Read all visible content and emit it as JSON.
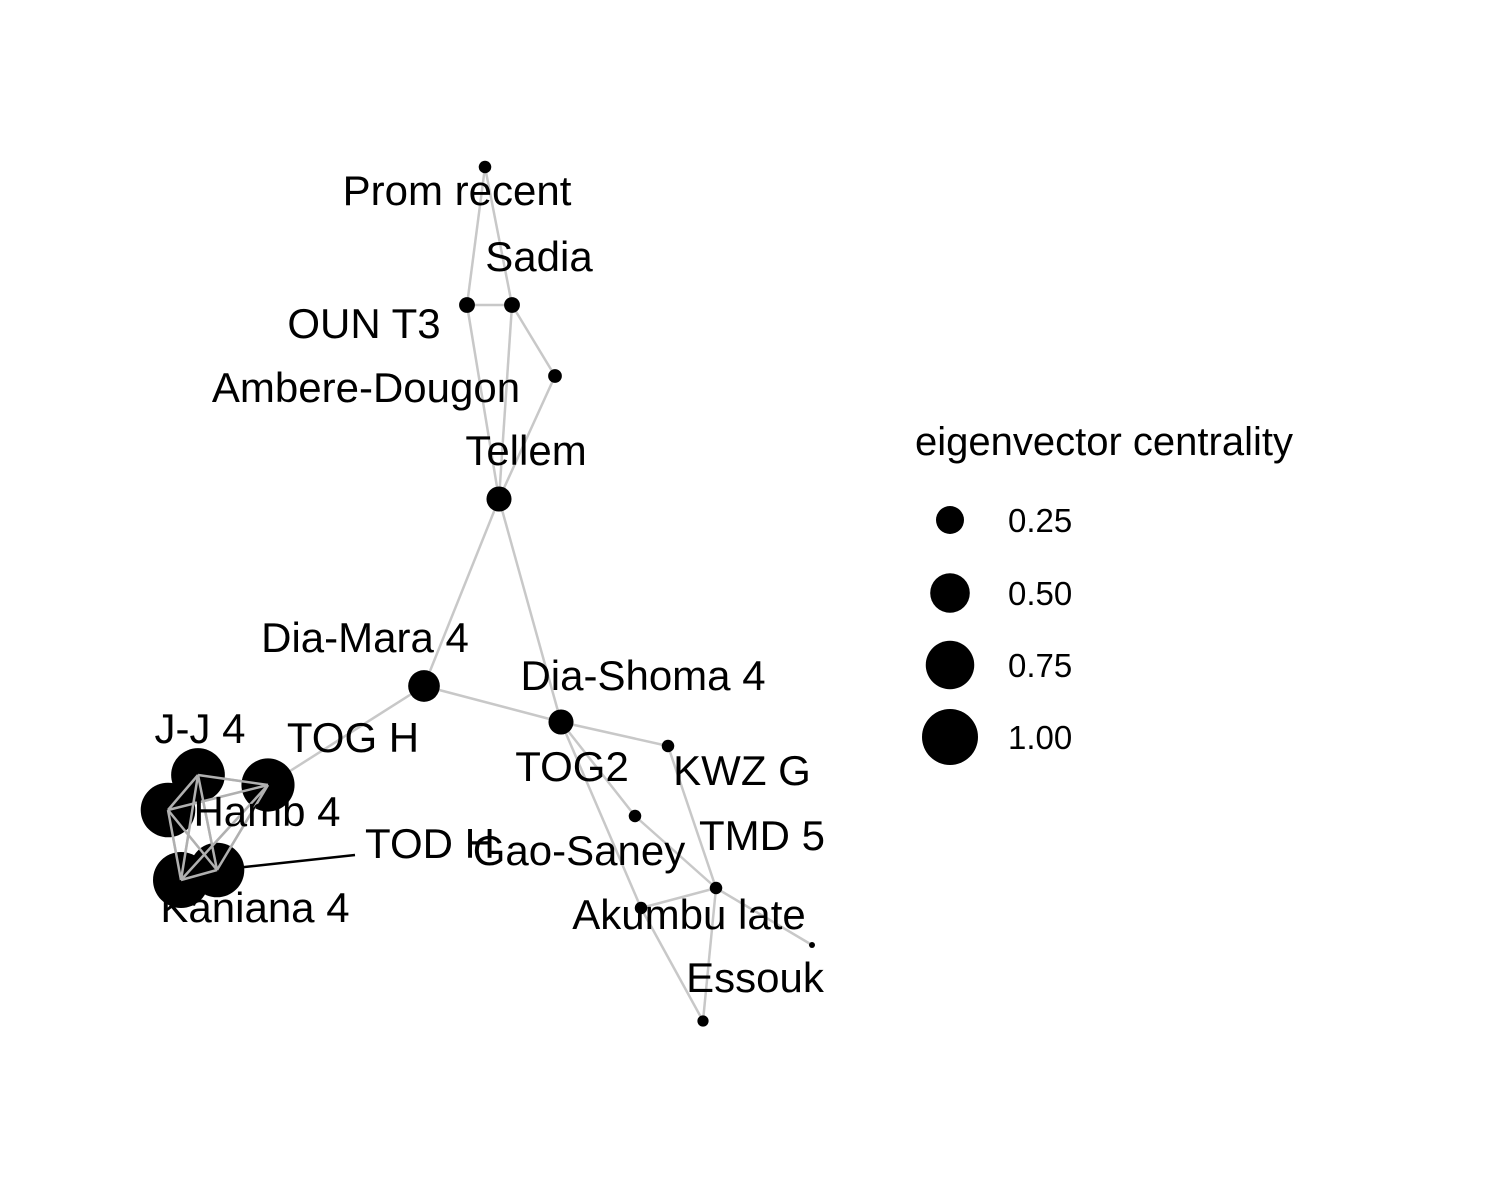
{
  "legend": {
    "title": "eigenvector centrality",
    "items": [
      {
        "label": "0.25",
        "value": 0.25
      },
      {
        "label": "0.50",
        "value": 0.5
      },
      {
        "label": "0.75",
        "value": 0.75
      },
      {
        "label": "1.00",
        "value": 1.0
      }
    ]
  },
  "colors": {
    "node": "#000000",
    "edge": "#c8c8c8",
    "edge_dark": "#000000",
    "background": "#ffffff"
  },
  "nodes": [
    {
      "id": "prom",
      "label": "Prom recent",
      "centrality": 0.05
    },
    {
      "id": "sadia",
      "label": "Sadia",
      "centrality": 0.08
    },
    {
      "id": "oun",
      "label": "OUN T3",
      "centrality": 0.08
    },
    {
      "id": "ambere",
      "label": "Ambere-Dougon",
      "centrality": 0.06
    },
    {
      "id": "tellem",
      "label": "Tellem",
      "centrality": 0.2
    },
    {
      "id": "diamara",
      "label": "Dia-Mara 4",
      "centrality": 0.32
    },
    {
      "id": "diashoma",
      "label": "Dia-Shoma 4",
      "centrality": 0.2
    },
    {
      "id": "kwz",
      "label": "KWZ G",
      "centrality": 0.05
    },
    {
      "id": "tog2",
      "label": "TOG2",
      "centrality": 0.05
    },
    {
      "id": "tmd5",
      "label": "TMD 5",
      "centrality": 0.05
    },
    {
      "id": "gao",
      "label": "Gao-Saney",
      "centrality": 0.05
    },
    {
      "id": "akumbu",
      "label": "Akumbu late",
      "centrality": 0.01
    },
    {
      "id": "essouk",
      "label": "Essouk",
      "centrality": 0.04
    },
    {
      "id": "jj4",
      "label": "J-J 4",
      "centrality": 0.92
    },
    {
      "id": "togh",
      "label": "TOG H",
      "centrality": 0.9
    },
    {
      "id": "hamb4",
      "label": "Hamb 4",
      "centrality": 0.95
    },
    {
      "id": "kaniana4",
      "label": "Kaniana 4",
      "centrality": 1.0
    },
    {
      "id": "todh",
      "label": "TOD H",
      "centrality": 0.95
    }
  ],
  "edges": [
    {
      "from": "prom",
      "to": "oun"
    },
    {
      "from": "prom",
      "to": "sadia"
    },
    {
      "from": "oun",
      "to": "sadia"
    },
    {
      "from": "oun",
      "to": "tellem"
    },
    {
      "from": "sadia",
      "to": "ambere"
    },
    {
      "from": "sadia",
      "to": "tellem"
    },
    {
      "from": "ambere",
      "to": "tellem"
    },
    {
      "from": "tellem",
      "to": "diamara"
    },
    {
      "from": "tellem",
      "to": "diashoma"
    },
    {
      "from": "diamara",
      "to": "diashoma"
    },
    {
      "from": "diamara",
      "to": "togh"
    },
    {
      "from": "diashoma",
      "to": "kwz"
    },
    {
      "from": "diashoma",
      "to": "tog2"
    },
    {
      "from": "diashoma",
      "to": "gao"
    },
    {
      "from": "tog2",
      "to": "tmd5"
    },
    {
      "from": "kwz",
      "to": "tmd5"
    },
    {
      "from": "gao",
      "to": "tmd5"
    },
    {
      "from": "gao",
      "to": "essouk"
    },
    {
      "from": "tmd5",
      "to": "akumbu"
    },
    {
      "from": "tmd5",
      "to": "essouk"
    },
    {
      "from": "jj4",
      "to": "togh"
    },
    {
      "from": "jj4",
      "to": "hamb4"
    },
    {
      "from": "jj4",
      "to": "kaniana4"
    },
    {
      "from": "jj4",
      "to": "todh"
    },
    {
      "from": "togh",
      "to": "hamb4"
    },
    {
      "from": "togh",
      "to": "kaniana4"
    },
    {
      "from": "togh",
      "to": "todh"
    },
    {
      "from": "hamb4",
      "to": "kaniana4"
    },
    {
      "from": "hamb4",
      "to": "todh"
    },
    {
      "from": "kaniana4",
      "to": "todh"
    },
    {
      "from": "todh",
      "to": "todh_label",
      "dark": true
    }
  ]
}
